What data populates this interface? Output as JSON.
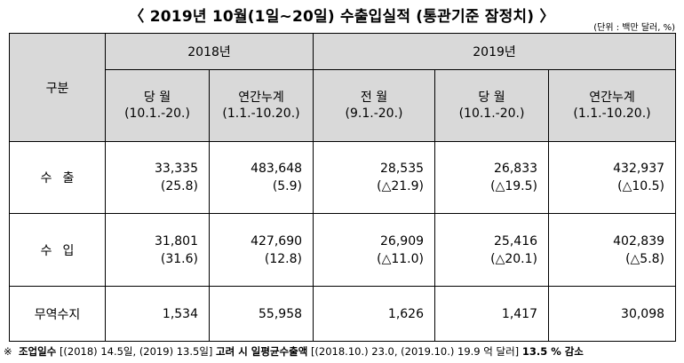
{
  "title": "〈 2019년  10월(1일~20일)  수출입실적 (통관기준 잠정치) 〉",
  "unit": "(단위 : 백만 달러, %)",
  "header": {
    "category": "구분",
    "year_2018": "2018년",
    "year_2019": "2019년",
    "columns": [
      {
        "label": "당 월",
        "period": "(10.1.-20.)"
      },
      {
        "label": "연간누계",
        "period": "(1.1.-10.20.)"
      },
      {
        "label": "전 월",
        "period": "(9.1.-20.)"
      },
      {
        "label": "당 월",
        "period": "(10.1.-20.)"
      },
      {
        "label": "연간누계",
        "period": "(1.1.-10.20.)"
      }
    ]
  },
  "rows": [
    {
      "label_chars": [
        "수",
        "출"
      ],
      "cells": [
        {
          "value": "33,335",
          "change": "(25.8)"
        },
        {
          "value": "483,648",
          "change": "(5.9)"
        },
        {
          "value": "28,535",
          "change": "(△21.9)"
        },
        {
          "value": "26,833",
          "change": "(△19.5)"
        },
        {
          "value": "432,937",
          "change": "(△10.5)"
        }
      ]
    },
    {
      "label_chars": [
        "수",
        "입"
      ],
      "cells": [
        {
          "value": "31,801",
          "change": "(31.6)"
        },
        {
          "value": "427,690",
          "change": "(12.8)"
        },
        {
          "value": "26,909",
          "change": "(△11.0)"
        },
        {
          "value": "25,416",
          "change": "(△20.1)"
        },
        {
          "value": "402,839",
          "change": "(△5.8)"
        }
      ]
    },
    {
      "label": "무역수지",
      "cells": [
        {
          "value": "1,534"
        },
        {
          "value": "55,958"
        },
        {
          "value": "1,626"
        },
        {
          "value": "1,417"
        },
        {
          "value": "30,098"
        }
      ]
    }
  ],
  "note": {
    "mark": "※",
    "part1": "조업일수",
    "part2": "[(2018) 14.5일, (2019) 13.5일]",
    "part3": "고려 시 일평균수출액",
    "part4": "[(2018.10.) 23.0, (2019.10.) 19.9 억 달러]",
    "part5": "13.5 % 감소"
  }
}
